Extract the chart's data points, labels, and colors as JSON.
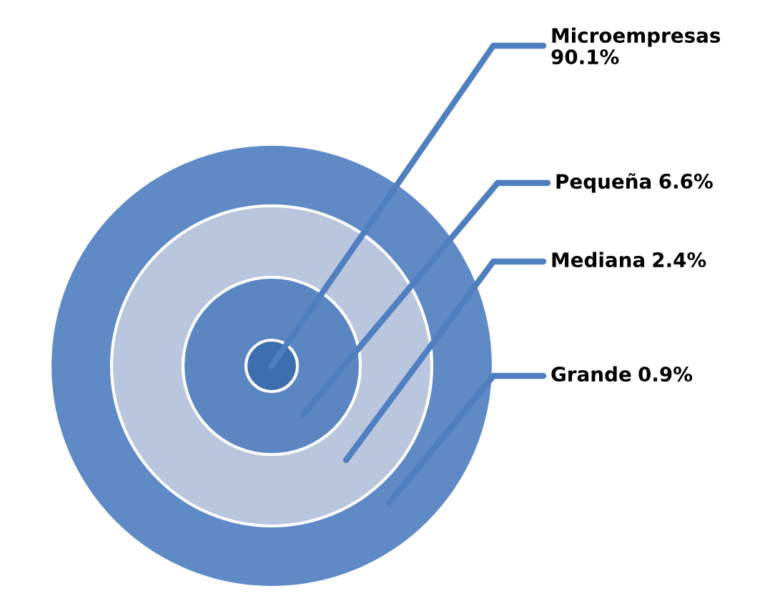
{
  "chart_data": {
    "type": "other",
    "categories": [
      "Microempresas",
      "Pequeña",
      "Mediana",
      "Grande"
    ],
    "values": [
      90.1,
      6.6,
      2.4,
      0.9
    ],
    "value_labels": [
      "90.1%",
      "6.6%",
      "2.4%",
      "0.9%"
    ],
    "colors": [
      "#3d6eae",
      "#5b86c2",
      "#bac6de",
      "#5f8ac6"
    ]
  }
}
